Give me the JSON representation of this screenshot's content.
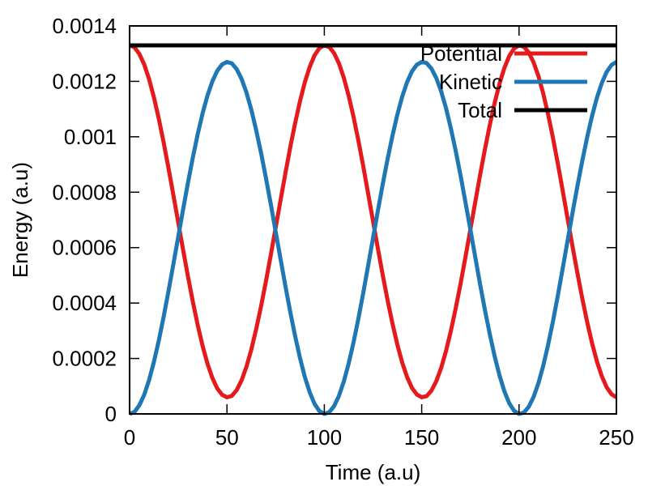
{
  "chart_data": {
    "type": "line",
    "xlabel": "Time (a.u)",
    "ylabel": "Energy (a.u)",
    "xlim": [
      0,
      250
    ],
    "ylim": [
      0,
      0.0014
    ],
    "grid": false,
    "legend_position": "top-right",
    "x_ticks": [
      "0",
      "50",
      "100",
      "150",
      "200",
      "250"
    ],
    "y_ticks": [
      "0",
      "0.0002",
      "0.0004",
      "0.0006",
      "0.0008",
      "0.001",
      "0.0012",
      "0.0014"
    ],
    "x_tick_values": [
      0,
      50,
      100,
      150,
      200,
      250
    ],
    "y_tick_values": [
      0,
      0.0002,
      0.0004,
      0.0006,
      0.0008,
      0.001,
      0.0012,
      0.0014
    ],
    "sample_step": 2.5,
    "series": [
      {
        "name": "Potential",
        "color": "#e41a1c",
        "values": [
          0.00133,
          0.001323,
          0.001299,
          0.001261,
          0.001208,
          0.001142,
          0.001065,
          0.000979,
          0.000886,
          0.000789,
          0.00069,
          0.000591,
          0.000495,
          0.000404,
          0.00032,
          0.000245,
          0.000181,
          0.00013,
          9.2e-05,
          6.9e-05,
          6e-05,
          6.5e-05,
          8.6e-05,
          0.000121,
          0.00017,
          0.000232,
          0.000306,
          0.000388,
          0.000478,
          0.000573,
          0.000672,
          0.00077,
          0.000868,
          0.000962,
          0.001049,
          0.001128,
          0.001197,
          0.001252,
          0.001294,
          0.00132,
          0.00133,
          0.001324,
          0.001302,
          0.001265,
          0.001213,
          0.001148,
          0.001072,
          0.000986,
          0.000893,
          0.000795,
          0.000696,
          0.000597,
          0.000501,
          0.00041,
          0.000326,
          0.00025,
          0.000185,
          0.000133,
          9.4e-05,
          7e-05,
          6e-05,
          6.4e-05,
          8.4e-05,
          0.000118,
          0.000166,
          0.000227,
          0.0003,
          0.000382,
          0.000471,
          0.000567,
          0.000665,
          0.000764,
          0.000862,
          0.000956,
          0.001043,
          0.001123,
          0.001192,
          0.001249,
          0.001292,
          0.001319,
          0.00133,
          0.001325,
          0.001304,
          0.001268,
          0.001218,
          0.001154,
          0.001078,
          0.000993,
          0.0009,
          0.000802,
          0.000702,
          0.000603,
          0.000507,
          0.000416,
          0.000331,
          0.000255,
          0.000189,
          0.000136,
          9.6e-05,
          7.1e-05,
          6e-05
        ]
      },
      {
        "name": "Kinetic",
        "color": "#1f77b4",
        "values": [
          0.0,
          7e-06,
          3.1e-05,
          6.9e-05,
          0.000122,
          0.000188,
          0.000265,
          0.000351,
          0.000444,
          0.000541,
          0.00064,
          0.000739,
          0.000835,
          0.000926,
          0.00101,
          0.001085,
          0.001149,
          0.0012,
          0.001238,
          0.001261,
          0.00127,
          0.001265,
          0.001244,
          0.001209,
          0.00116,
          0.001098,
          0.001024,
          0.000942,
          0.000852,
          0.000757,
          0.000658,
          0.00056,
          0.000462,
          0.000368,
          0.000281,
          0.000202,
          0.000133,
          7.8e-05,
          3.6e-05,
          1e-05,
          0.0,
          6e-06,
          2.8e-05,
          6.5e-05,
          0.000117,
          0.000182,
          0.000258,
          0.000344,
          0.000437,
          0.000535,
          0.000634,
          0.000733,
          0.000829,
          0.00092,
          0.001004,
          0.00108,
          0.001145,
          0.001197,
          0.001236,
          0.00126,
          0.00127,
          0.001266,
          0.001246,
          0.001212,
          0.001164,
          0.001103,
          0.00103,
          0.000948,
          0.000859,
          0.000763,
          0.000665,
          0.000566,
          0.000468,
          0.000374,
          0.000287,
          0.000207,
          0.000138,
          8.1e-05,
          3.8e-05,
          1.1e-05,
          0.0,
          5e-06,
          2.6e-05,
          6.2e-05,
          0.000112,
          0.000176,
          0.000252,
          0.000337,
          0.00043,
          0.000528,
          0.000628,
          0.000727,
          0.000823,
          0.000914,
          0.000999,
          0.001075,
          0.001141,
          0.001194,
          0.001234,
          0.001259,
          0.00127
        ]
      },
      {
        "name": "Total",
        "color": "#000000",
        "values": [
          0.00133,
          0.00133,
          0.00133,
          0.00133,
          0.00133,
          0.00133,
          0.00133,
          0.00133,
          0.00133,
          0.00133,
          0.00133,
          0.00133,
          0.00133,
          0.00133,
          0.00133,
          0.00133,
          0.00133,
          0.00133,
          0.00133,
          0.00133,
          0.00133,
          0.00133,
          0.00133,
          0.00133,
          0.00133,
          0.00133,
          0.00133,
          0.00133,
          0.00133,
          0.00133,
          0.00133,
          0.00133,
          0.00133,
          0.00133,
          0.00133,
          0.00133,
          0.00133,
          0.00133,
          0.00133,
          0.00133,
          0.00133,
          0.00133,
          0.00133,
          0.00133,
          0.00133,
          0.00133,
          0.00133,
          0.00133,
          0.00133,
          0.00133,
          0.00133,
          0.00133,
          0.00133,
          0.00133,
          0.00133,
          0.00133,
          0.00133,
          0.00133,
          0.00133,
          0.00133,
          0.00133,
          0.00133,
          0.00133,
          0.00133,
          0.00133,
          0.00133,
          0.00133,
          0.00133,
          0.00133,
          0.00133,
          0.00133,
          0.00133,
          0.00133,
          0.00133,
          0.00133,
          0.00133,
          0.00133,
          0.00133,
          0.00133,
          0.00133,
          0.00133,
          0.00133,
          0.00133,
          0.00133,
          0.00133,
          0.00133,
          0.00133,
          0.00133,
          0.00133,
          0.00133,
          0.00133,
          0.00133,
          0.00133,
          0.00133,
          0.00133,
          0.00133,
          0.00133,
          0.00133,
          0.00133,
          0.00133,
          0.00133
        ]
      }
    ]
  }
}
